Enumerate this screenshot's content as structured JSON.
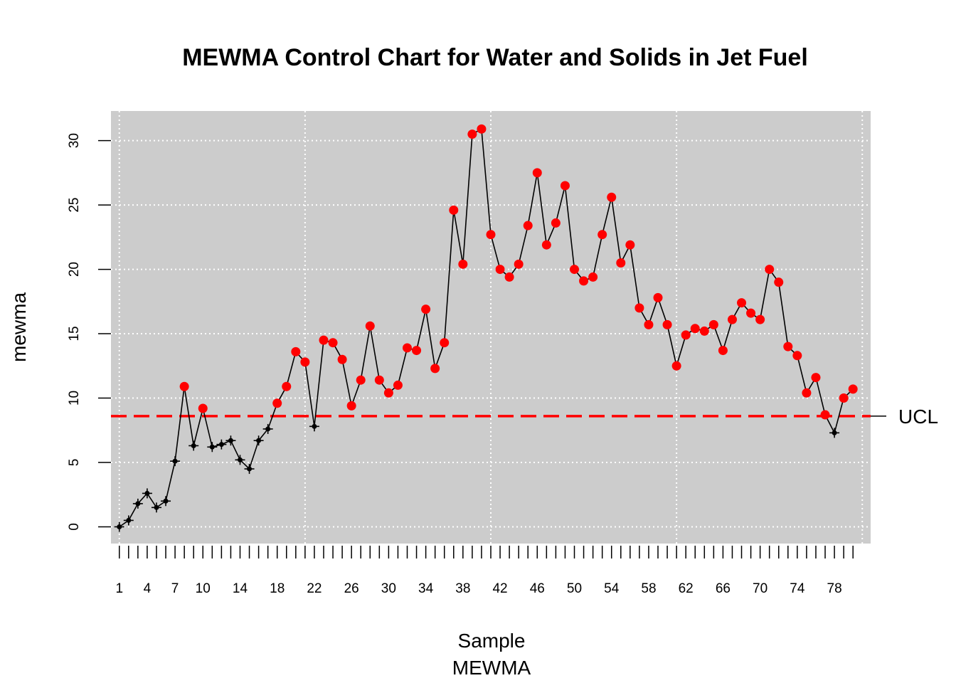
{
  "chart_data": {
    "type": "line",
    "title": "MEWMA Control Chart for Water and Solids in Jet Fuel",
    "xlabel": "Sample",
    "xlabel2": "MEWMA",
    "ylabel": "mewma",
    "ucl_label": "UCL",
    "ucl": 8.6,
    "xlim": [
      0.1,
      81.9
    ],
    "ylim": [
      -1.3,
      32.3
    ],
    "x_tick_labels": [
      "1",
      "4",
      "7",
      "10",
      "14",
      "18",
      "22",
      "26",
      "30",
      "34",
      "38",
      "42",
      "46",
      "50",
      "54",
      "58",
      "62",
      "66",
      "70",
      "74",
      "78"
    ],
    "x_tick_positions": [
      1,
      4,
      7,
      10,
      14,
      18,
      22,
      26,
      30,
      34,
      38,
      42,
      46,
      50,
      54,
      58,
      62,
      66,
      70,
      74,
      78
    ],
    "y_ticks": [
      0,
      5,
      10,
      15,
      20,
      25,
      30
    ],
    "x_grid": [
      1,
      21,
      41,
      61,
      81
    ],
    "grid": true,
    "colors": {
      "background": "#cccccc",
      "grid": "#ffffff",
      "line": "#000000",
      "in_control": "#000000",
      "out_of_control": "#ff0000",
      "ucl_line": "#ff0000"
    },
    "series": [
      {
        "x": [
          1,
          2,
          3,
          4,
          5,
          6,
          7,
          8,
          9,
          10,
          11,
          12,
          13,
          14,
          15,
          16,
          17,
          18,
          19,
          20,
          21,
          22,
          23,
          24,
          25,
          26,
          27,
          28,
          29,
          30,
          31,
          32,
          33,
          34,
          35,
          36,
          37,
          38,
          39,
          40,
          41,
          42,
          43,
          44,
          45,
          46,
          47,
          48,
          49,
          50,
          51,
          52,
          53,
          54,
          55,
          56,
          57,
          58,
          59,
          60,
          61,
          62,
          63,
          64,
          65,
          66,
          67,
          68,
          69,
          70,
          71,
          72,
          73,
          74,
          75,
          76,
          77,
          78,
          79,
          80
        ],
        "values": [
          0.0,
          0.5,
          1.8,
          2.6,
          1.5,
          2.0,
          5.1,
          10.9,
          6.3,
          9.2,
          6.2,
          6.4,
          6.7,
          5.2,
          4.5,
          6.7,
          7.6,
          9.6,
          10.9,
          13.6,
          12.8,
          7.8,
          14.5,
          14.3,
          13.0,
          9.4,
          11.4,
          15.6,
          11.4,
          10.4,
          11.0,
          13.9,
          13.7,
          16.9,
          12.3,
          14.3,
          24.6,
          20.4,
          30.5,
          30.9,
          22.7,
          20.0,
          19.4,
          20.4,
          23.4,
          27.5,
          21.9,
          23.6,
          26.5,
          20.0,
          19.1,
          19.4,
          22.7,
          25.6,
          20.5,
          21.9,
          17.0,
          15.7,
          17.8,
          15.7,
          12.5,
          14.9,
          15.4,
          15.2,
          15.7,
          13.7,
          16.1,
          17.4,
          16.6,
          16.1,
          20.0,
          19.0,
          14.0,
          13.3,
          10.4,
          11.6,
          8.7,
          7.3,
          10.0,
          10.7
        ]
      }
    ]
  }
}
